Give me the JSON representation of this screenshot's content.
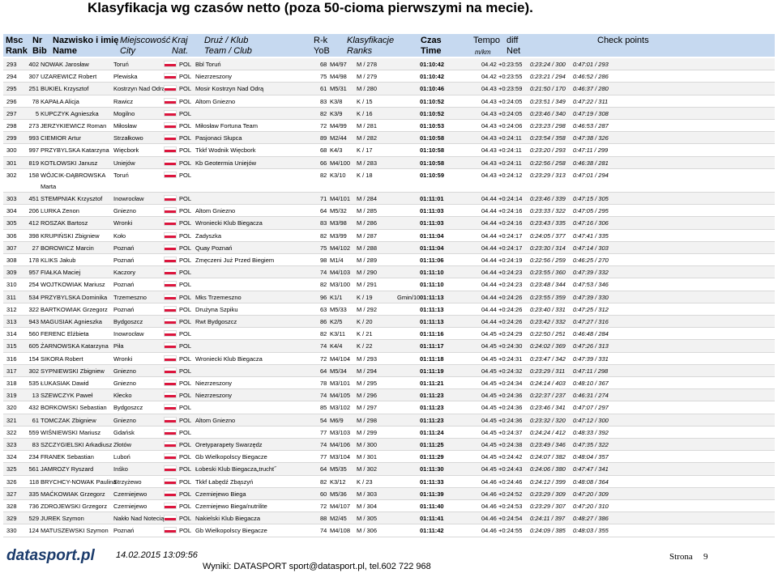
{
  "header": {
    "title": "Klasyfikacja wg czasów netto (poza 50-cioma pierwszymi na mecie).",
    "columns_top": [
      "Msc",
      "Nr",
      "Nazwisko i imię",
      "Miejscowość",
      "Kraj",
      "Druż / Klub",
      "R-k",
      "Klasyfikacje",
      "Czas",
      "Tempo",
      "diff",
      "Check points"
    ],
    "columns_bottom": [
      "Rank",
      "Bib",
      "Name",
      "City",
      "Nat.",
      "Team / Club",
      "YoB",
      "Ranks",
      "Time",
      "m/km",
      "Net"
    ]
  },
  "table": {
    "rows": [
      {
        "rank": 293,
        "bib": 402,
        "name": "NOWAK Jarosław",
        "city": "Toruń",
        "nat": "POL",
        "team": "Bbl Toruń",
        "yob": 68,
        "ranks": [
          "M4/97",
          "M / 278"
        ],
        "time": "01:10:42",
        "pace": "04.42",
        "diff": "+0:23:55",
        "cp": [
          "0:23:24 / 300",
          "0:47:01 / 293"
        ]
      },
      {
        "rank": 294,
        "bib": 307,
        "name": "UZAREWICZ Robert",
        "city": "Plewiska",
        "nat": "POL",
        "team": "Niezrzeszony",
        "yob": 75,
        "ranks": [
          "M4/98",
          "M / 279"
        ],
        "time": "01:10:42",
        "pace": "04.42",
        "diff": "+0:23:55",
        "cp": [
          "0:23:21 / 294",
          "0:46:52 / 286"
        ]
      },
      {
        "rank": 295,
        "bib": 251,
        "name": "BUKIEL Krzysztof",
        "city": "Kostrzyn Nad Odrą",
        "nat": "POL",
        "team": "Mosir Kostrzyn Nad Odrą",
        "yob": 61,
        "ranks": [
          "M5/31",
          "M / 280"
        ],
        "time": "01:10:46",
        "pace": "04.43",
        "diff": "+0:23:59",
        "cp": [
          "0:21:50 / 170",
          "0:46:37 / 280"
        ]
      },
      {
        "rank": 296,
        "bib": 78,
        "name": "KAPAŁA Alicja",
        "city": "Rawicz",
        "nat": "POL",
        "team": "Altom Gniezno",
        "yob": 83,
        "ranks": [
          "K3/8",
          "K / 15"
        ],
        "time": "01:10:52",
        "pace": "04.43",
        "diff": "+0:24:05",
        "cp": [
          "0:23:51 / 349",
          "0:47:22 / 311"
        ]
      },
      {
        "rank": 297,
        "bib": 5,
        "name": "KUPCZYK Agnieszka",
        "city": "Mogilno",
        "nat": "POL",
        "yob": 82,
        "ranks": [
          "K3/9",
          "K / 16"
        ],
        "time": "01:10:52",
        "pace": "04.43",
        "diff": "+0:24:05",
        "cp": [
          "0:23:46 / 340",
          "0:47:19 / 308"
        ]
      },
      {
        "rank": 298,
        "bib": 273,
        "name": "JERZYKIEWICZ Roman",
        "city": "Miłosław",
        "nat": "POL",
        "team": "Miłosław Fortuna Team",
        "yob": 72,
        "ranks": [
          "M4/99",
          "M / 281"
        ],
        "time": "01:10:53",
        "pace": "04.43",
        "diff": "+0:24:06",
        "cp": [
          "0:23:23 / 298",
          "0:46:53 / 287"
        ]
      },
      {
        "rank": 299,
        "bib": 993,
        "name": "CIEMIOR Artur",
        "city": "Strzałkowo",
        "nat": "POL",
        "team": "Pasjonaci Słupca",
        "yob": 89,
        "ranks": [
          "M2/44",
          "M / 282"
        ],
        "time": "01:10:58",
        "pace": "04.43",
        "diff": "+0:24:11",
        "cp": [
          "0:23:54 / 358",
          "0:47:38 / 326"
        ]
      },
      {
        "rank": 300,
        "bib": 997,
        "name": "PRZYBYLSKA Katarzyna",
        "city": "Więcbork",
        "nat": "POL",
        "team": "Tkkf Wodnik Więcbork",
        "yob": 68,
        "ranks": [
          "K4/3",
          "K / 17"
        ],
        "time": "01:10:58",
        "pace": "04.43",
        "diff": "+0:24:11",
        "cp": [
          "0:23:20 / 293",
          "0:47:11 / 299"
        ]
      },
      {
        "rank": 301,
        "bib": 819,
        "name": "KOTŁOWSKI Janusz",
        "city": "Uniejów",
        "nat": "POL",
        "team": "Kb Geotermia Uniejów",
        "yob": 66,
        "ranks": [
          "M4/100",
          "M / 283"
        ],
        "time": "01:10:58",
        "pace": "04.43",
        "diff": "+0:24:11",
        "cp": [
          "0:22:56 / 258",
          "0:46:38 / 281"
        ]
      },
      {
        "rank": 302,
        "bib": 158,
        "name": [
          "WÓJCIK-DĄBROWSKA",
          "Marta"
        ],
        "city": "Toruń",
        "nat": "POL",
        "yob": 82,
        "ranks": [
          "K3/10",
          "K / 18"
        ],
        "time": "01:10:59",
        "pace": "04.43",
        "diff": "+0:24:12",
        "cp": [
          "0:23:29 / 313",
          "0:47:01 / 294"
        ]
      },
      {
        "rank": 303,
        "bib": 451,
        "name": "STEMPNIAK Krzysztof",
        "city": "Inowrocław",
        "nat": "POL",
        "yob": 71,
        "ranks": [
          "M4/101",
          "M / 284"
        ],
        "time": "01:11:01",
        "pace": "04.44",
        "diff": "+0:24:14",
        "cp": [
          "0:23:46 / 339",
          "0:47:15 / 305"
        ]
      },
      {
        "rank": 304,
        "bib": 206,
        "name": "LURKA Zenon",
        "city": "Gniezno",
        "nat": "POL",
        "team": "Altom Gniezno",
        "yob": 64,
        "ranks": [
          "M5/32",
          "M / 285"
        ],
        "time": "01:11:03",
        "pace": "04.44",
        "diff": "+0:24:16",
        "cp": [
          "0:23:33 / 322",
          "0:47:05 / 295"
        ]
      },
      {
        "rank": 305,
        "bib": 412,
        "name": "ROSZAK Bartosz",
        "city": "Wronki",
        "nat": "POL",
        "team": "Wroniecki Klub Biegacza",
        "yob": 83,
        "ranks": [
          "M3/98",
          "M / 286"
        ],
        "time": "01:11:03",
        "pace": "04.44",
        "diff": "+0:24:16",
        "cp": [
          "0:23:43 / 335",
          "0:47:16 / 306"
        ]
      },
      {
        "rank": 306,
        "bib": 398,
        "name": "KRUPIŃSKI Zbigniew",
        "city": "Koło",
        "nat": "POL",
        "team": "Zadyszka",
        "yob": 82,
        "ranks": [
          "M3/99",
          "M / 287"
        ],
        "time": "01:11:04",
        "pace": "04.44",
        "diff": "+0:24:17",
        "cp": [
          "0:24:05 / 377",
          "0:47:41 / 335"
        ]
      },
      {
        "rank": 307,
        "bib": 27,
        "name": "BOROWICZ Marcin",
        "city": "Poznań",
        "nat": "POL",
        "team": "Quay Poznań",
        "yob": 75,
        "ranks": [
          "M4/102",
          "M / 288"
        ],
        "time": "01:11:04",
        "pace": "04.44",
        "diff": "+0:24:17",
        "cp": [
          "0:23:30 / 314",
          "0:47:14 / 303"
        ]
      },
      {
        "rank": 308,
        "bib": 178,
        "name": "KLIKS Jakub",
        "city": "Poznań",
        "nat": "POL",
        "team": "Zmęczeni Już Przed Biegiem",
        "yob": 98,
        "ranks": [
          "M1/4",
          "M / 289"
        ],
        "time": "01:11:06",
        "pace": "04.44",
        "diff": "+0:24:19",
        "cp": [
          "0:22:56 / 259",
          "0:46:25 / 270"
        ]
      },
      {
        "rank": 309,
        "bib": 957,
        "name": "FIAŁKA Maciej",
        "city": "Kaczory",
        "nat": "POL",
        "yob": 74,
        "ranks": [
          "M4/103",
          "M / 290"
        ],
        "time": "01:11:10",
        "pace": "04.44",
        "diff": "+0:24:23",
        "cp": [
          "0:23:55 / 360",
          "0:47:39 / 332"
        ]
      },
      {
        "rank": 310,
        "bib": 254,
        "name": "WOJTKOWIAK Mariusz",
        "city": "Poznań",
        "nat": "POL",
        "yob": 82,
        "ranks": [
          "M3/100",
          "M / 291"
        ],
        "time": "01:11:10",
        "pace": "04.44",
        "diff": "+0:24:23",
        "cp": [
          "0:23:48 / 344",
          "0:47:53 / 346"
        ]
      },
      {
        "rank": 311,
        "bib": 534,
        "name": "PRZYBYLSKA Dominika",
        "city": "Trzemeszno",
        "nat": "POL",
        "team": "Mks Trzemeszno",
        "yob": 96,
        "ranks": [
          "K1/1",
          "K / 19",
          "Gmin/10"
        ],
        "time": "01:11:13",
        "pace": "04.44",
        "diff": "+0:24:26",
        "cp": [
          "0:23:55 / 359",
          "0:47:39 / 330"
        ]
      },
      {
        "rank": 312,
        "bib": 322,
        "name": "BARTKOWIAK Grzegorz",
        "city": "Poznań",
        "nat": "POL",
        "team": "Drużyna Szpiku",
        "yob": 63,
        "ranks": [
          "M5/33",
          "M / 292"
        ],
        "time": "01:11:13",
        "pace": "04.44",
        "diff": "+0:24:26",
        "cp": [
          "0:23:40 / 331",
          "0:47:25 / 312"
        ]
      },
      {
        "rank": 313,
        "bib": 943,
        "name": "MAGUSIAK Agnieszka",
        "city": "Bydgoszcz",
        "nat": "POL",
        "team": "Rwt Bydgoszcz",
        "yob": 86,
        "ranks": [
          "K2/5",
          "K / 20"
        ],
        "time": "01:11:13",
        "pace": "04.44",
        "diff": "+0:24:26",
        "cp": [
          "0:23:42 / 332",
          "0:47:27 / 316"
        ]
      },
      {
        "rank": 314,
        "bib": 560,
        "name": "FERENC Elżbieta",
        "city": "Inowrocław",
        "nat": "POL",
        "yob": 82,
        "ranks": [
          "K3/11",
          "K / 21"
        ],
        "time": "01:11:16",
        "pace": "04.45",
        "diff": "+0:24:29",
        "cp": [
          "0:22:50 / 251",
          "0:46:48 / 284"
        ]
      },
      {
        "rank": 315,
        "bib": 605,
        "name": "ŻARNOWSKA Katarzyna",
        "city": "Piła",
        "nat": "POL",
        "yob": 74,
        "ranks": [
          "K4/4",
          "K / 22"
        ],
        "time": "01:11:17",
        "pace": "04.45",
        "diff": "+0:24:30",
        "cp": [
          "0:24:02 / 369",
          "0:47:26 / 313"
        ]
      },
      {
        "rank": 316,
        "bib": 154,
        "name": "SIKORA Robert",
        "city": "Wronki",
        "nat": "POL",
        "team": "Wroniecki Klub Biegacza",
        "yob": 72,
        "ranks": [
          "M4/104",
          "M / 293"
        ],
        "time": "01:11:18",
        "pace": "04.45",
        "diff": "+0:24:31",
        "cp": [
          "0:23:47 / 342",
          "0:47:39 / 331"
        ]
      },
      {
        "rank": 317,
        "bib": 302,
        "name": "SYPNIEWSKI Zbigniew",
        "city": "Gniezno",
        "nat": "POL",
        "yob": 64,
        "ranks": [
          "M5/34",
          "M / 294"
        ],
        "time": "01:11:19",
        "pace": "04.45",
        "diff": "+0:24:32",
        "cp": [
          "0:23:29 / 311",
          "0:47:11 / 298"
        ]
      },
      {
        "rank": 318,
        "bib": 535,
        "name": "ŁUKASIAK Dawid",
        "city": "Gniezno",
        "nat": "POL",
        "team": "Niezrzeszony",
        "yob": 78,
        "ranks": [
          "M3/101",
          "M / 295"
        ],
        "time": "01:11:21",
        "pace": "04.45",
        "diff": "+0:24:34",
        "cp": [
          "0:24:14 / 403",
          "0:48:10 / 367"
        ]
      },
      {
        "rank": 319,
        "bib": 13,
        "name": "SZEWCZYK Paweł",
        "city": "Kłecko",
        "nat": "POL",
        "team": "Niezrzeszony",
        "yob": 74,
        "ranks": [
          "M4/105",
          "M / 296"
        ],
        "time": "01:11:23",
        "pace": "04.45",
        "diff": "+0:24:36",
        "cp": [
          "0:22:37 / 237",
          "0:46:31 / 274"
        ]
      },
      {
        "rank": 320,
        "bib": 432,
        "name": "BORKOWSKI Sebastian",
        "city": "Bydgoszcz",
        "nat": "POL",
        "yob": 85,
        "ranks": [
          "M3/102",
          "M / 297"
        ],
        "time": "01:11:23",
        "pace": "04.45",
        "diff": "+0:24:36",
        "cp": [
          "0:23:46 / 341",
          "0:47:07 / 297"
        ]
      },
      {
        "rank": 321,
        "bib": 61,
        "name": "TOMCZAK Zbigniew",
        "city": "Gniezno",
        "nat": "POL",
        "team": "Altom Gniezno",
        "yob": 54,
        "ranks": [
          "M6/9",
          "M / 298"
        ],
        "time": "01:11:23",
        "pace": "04.45",
        "diff": "+0:24:36",
        "cp": [
          "0:23:32 / 320",
          "0:47:12 / 300"
        ]
      },
      {
        "rank": 322,
        "bib": 559,
        "name": "WIŚNIEWSKI Mariusz",
        "city": "Gdańsk",
        "nat": "POL",
        "yob": 77,
        "ranks": [
          "M3/103",
          "M / 299"
        ],
        "time": "01:11:24",
        "pace": "04.45",
        "diff": "+0:24:37",
        "cp": [
          "0:24:24 / 412",
          "0:48:33 / 392"
        ]
      },
      {
        "rank": 323,
        "bib": 83,
        "name": "SZCZYGIELSKI Arkadiusz",
        "city": "Złotów",
        "nat": "POL",
        "team": "Oretyparapety Swarzędz",
        "yob": 74,
        "ranks": [
          "M4/106",
          "M / 300"
        ],
        "time": "01:11:25",
        "pace": "04.45",
        "diff": "+0:24:38",
        "cp": [
          "0:23:49 / 346",
          "0:47:35 / 322"
        ]
      },
      {
        "rank": 324,
        "bib": 234,
        "name": "FRANEK Sebastian",
        "city": "Luboń",
        "nat": "POL",
        "team": "Gb Wielkopolscy Biegacze",
        "yob": 77,
        "ranks": [
          "M3/104",
          "M / 301"
        ],
        "time": "01:11:29",
        "pace": "04.45",
        "diff": "+0:24:42",
        "cp": [
          "0:24:07 / 382",
          "0:48:04 / 357"
        ]
      },
      {
        "rank": 325,
        "bib": 561,
        "name": "JAMROZY Ryszard",
        "city": "Inśko",
        "nat": "POL",
        "team": "Łobeski Klub Biegacza„trucht˝",
        "yob": 64,
        "ranks": [
          "M5/35",
          "M / 302"
        ],
        "time": "01:11:30",
        "pace": "04.45",
        "diff": "+0:24:43",
        "cp": [
          "0:24:06 / 380",
          "0:47:47 / 341"
        ]
      },
      {
        "rank": 326,
        "bib": 118,
        "name": "BRYCHCY-NOWAK Paulina",
        "city": "Strzyżewo",
        "nat": "POL",
        "team": "Tkkf Łabędź Zbąszyń",
        "yob": 82,
        "ranks": [
          "K3/12",
          "K / 23"
        ],
        "time": "01:11:33",
        "pace": "04.46",
        "diff": "+0:24:46",
        "cp": [
          "0:24:12 / 399",
          "0:48:08 / 364"
        ]
      },
      {
        "rank": 327,
        "bib": 335,
        "name": "MAĆKOWIAK Grzegorz",
        "city": "Czerniejewo",
        "nat": "POL",
        "team": "Czerniejewo Biega",
        "yob": 60,
        "ranks": [
          "M5/36",
          "M / 303"
        ],
        "time": "01:11:39",
        "pace": "04.46",
        "diff": "+0:24:52",
        "cp": [
          "0:23:29 / 309",
          "0:47:20 / 309"
        ]
      },
      {
        "rank": 328,
        "bib": 736,
        "name": "ZDROJEWSKI Grzegorz",
        "city": "Czerniejewo",
        "nat": "POL",
        "team": "Czerniejewo Biega/nutrilite",
        "yob": 72,
        "ranks": [
          "M4/107",
          "M / 304"
        ],
        "time": "01:11:40",
        "pace": "04.46",
        "diff": "+0:24:53",
        "cp": [
          "0:23:29 / 307",
          "0:47:20 / 310"
        ]
      },
      {
        "rank": 329,
        "bib": 529,
        "name": "JUREK Szymon",
        "city": "Nakło Nad Notecią",
        "nat": "POL",
        "team": "Nakielski Klub Biegacza",
        "yob": 88,
        "ranks": [
          "M2/45",
          "M / 305"
        ],
        "time": "01:11:41",
        "pace": "04.46",
        "diff": "+0:24:54",
        "cp": [
          "0:24:11 / 397",
          "0:48:27 / 386"
        ]
      },
      {
        "rank": 330,
        "bib": 124,
        "name": "MATUSZEWSKI Szymon",
        "city": "Poznań",
        "nat": "POL",
        "team": "Gb Wielkopolscy Biegacze",
        "yob": 74,
        "ranks": [
          "M4/108",
          "M / 306"
        ],
        "time": "01:11:42",
        "pace": "04.46",
        "diff": "+0:24:55",
        "cp": [
          "0:24:09 / 385",
          "0:48:03 / 355"
        ]
      }
    ]
  },
  "footer": {
    "logo": "datasport.pl",
    "timestamp": "14.02.2015 13:09:56",
    "contact": "Wyniki: DATASPORT sport@datasport.pl, tel.602 722 968",
    "page_label": "Strona",
    "page": 9
  }
}
